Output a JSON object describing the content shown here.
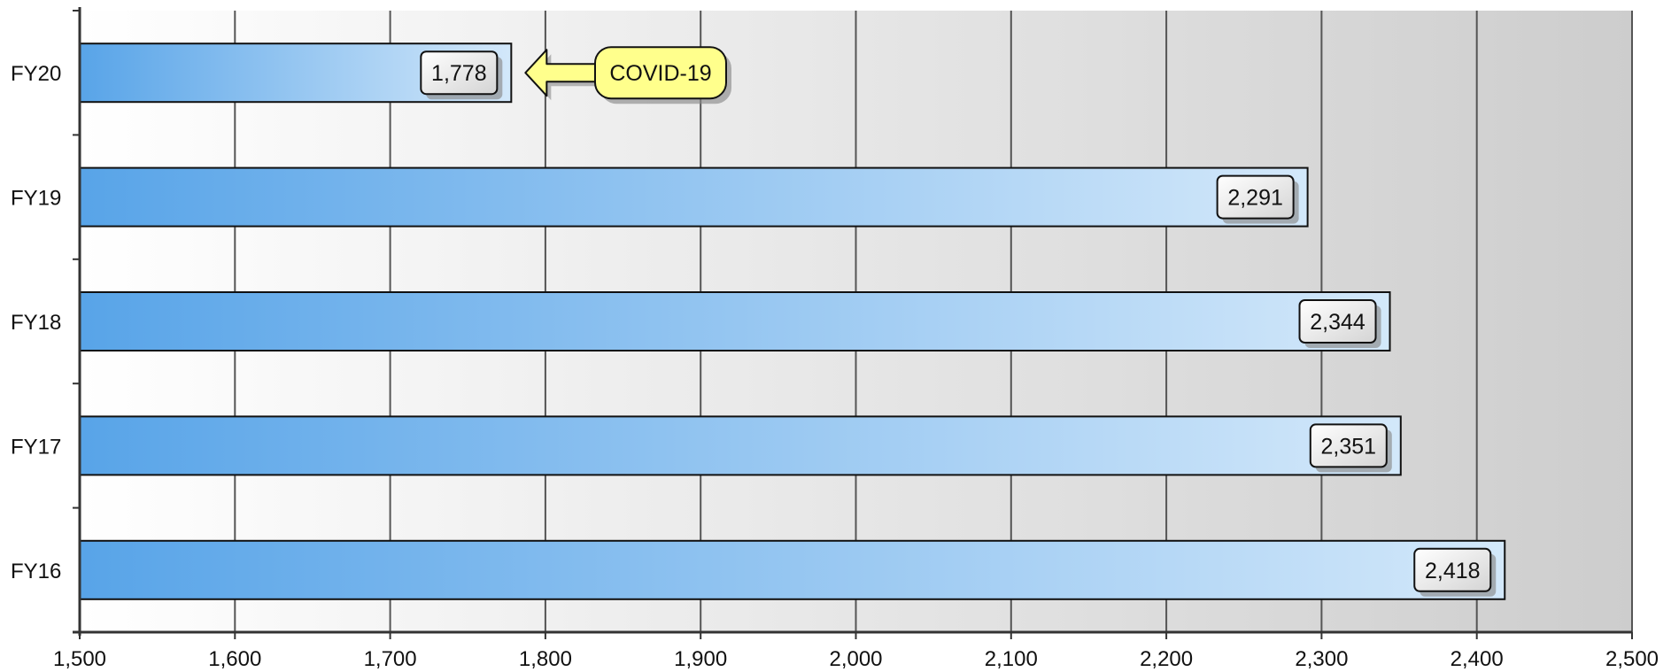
{
  "chart_data": {
    "type": "bar",
    "orientation": "horizontal",
    "title": "",
    "xlabel": "",
    "ylabel": "",
    "categories": [
      "FY20",
      "FY19",
      "FY18",
      "FY17",
      "FY16"
    ],
    "values": [
      1778,
      2291,
      2344,
      2351,
      2418
    ],
    "value_labels": [
      "1,778",
      "2,291",
      "2,344",
      "2,351",
      "2,418"
    ],
    "xlim": [
      1500,
      2500
    ],
    "xticks": [
      1500,
      1600,
      1700,
      1800,
      1900,
      2000,
      2100,
      2200,
      2300,
      2400,
      2500
    ],
    "xtick_labels": [
      "1,500",
      "1,600",
      "1,700",
      "1,800",
      "1,900",
      "2,000",
      "2,100",
      "2,200",
      "2,300",
      "2,400",
      "2,500"
    ],
    "grid": true,
    "legend": "none",
    "annotations": [
      {
        "text": "COVID-19",
        "target_category": "FY20",
        "style": "arrow-callout"
      }
    ],
    "colors": {
      "bar_start": "#58a4e8",
      "bar_end": "#d3e8fa",
      "callout_fill": "#ffff8c",
      "background_start": "#ffffff",
      "background_end": "#cdcdcd"
    }
  }
}
